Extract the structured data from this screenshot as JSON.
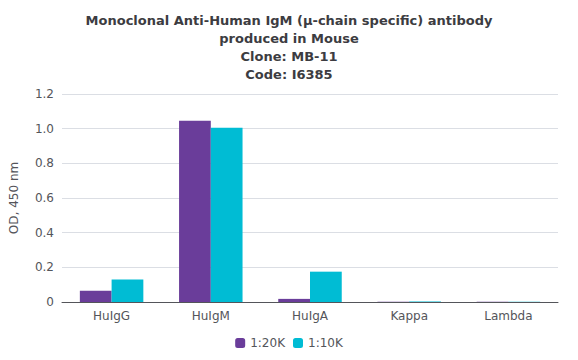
{
  "chart_data": {
    "type": "bar",
    "title": "Monoclonal Anti-Human IgM (μ-chain specific) antibody\nproduced in Mouse\nClone: MB-11\nCode: I6385",
    "categories": [
      "HuIgG",
      "HuIgM",
      "HuIgA",
      "Kappa",
      "Lambda"
    ],
    "series": [
      {
        "name": "1:20K",
        "color": "#6a3d9a",
        "values": [
          0.065,
          1.045,
          0.018,
          0.002,
          0.002
        ]
      },
      {
        "name": "1:10K",
        "color": "#00bcd4",
        "values": [
          0.13,
          1.005,
          0.175,
          0.003,
          0.002
        ]
      }
    ],
    "ylabel": "OD, 450 nm",
    "ylim": [
      0,
      1.2
    ],
    "yticks": [
      0,
      0.2,
      0.4,
      0.6,
      0.8,
      {
        "value": 1.0,
        "label": "1.0"
      },
      1.2
    ],
    "grid": true,
    "legend": "bottom"
  }
}
